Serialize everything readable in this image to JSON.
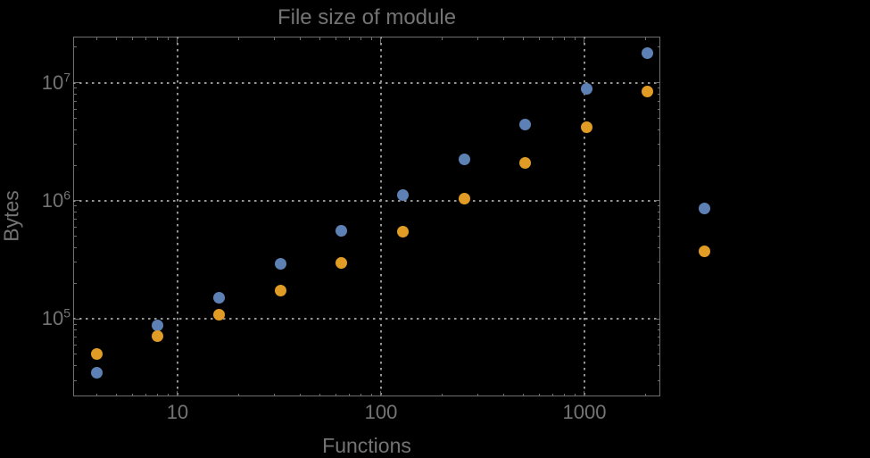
{
  "background_color": "#000000",
  "text_color": "#747474",
  "frame_color": "#6f6f6f",
  "gridline_color": "#949494",
  "chart_data": {
    "type": "scatter",
    "title": "File size of module",
    "xlabel": "Functions",
    "ylabel": "Bytes",
    "x_scale": "log",
    "y_scale": "log",
    "xlim": [
      3.07,
      2360
    ],
    "ylim": [
      22000,
      24600000
    ],
    "grid": {
      "style": "dotted",
      "x_values": [
        10,
        100,
        1000
      ],
      "y_values": [
        100000,
        1000000,
        10000000
      ]
    },
    "x_major_ticks": [
      {
        "value": 10,
        "label": "10"
      },
      {
        "value": 100,
        "label": "100"
      },
      {
        "value": 1000,
        "label": "1000"
      }
    ],
    "y_major_ticks": [
      {
        "value": 100000,
        "base": "10",
        "exponent": "5"
      },
      {
        "value": 1000000,
        "base": "10",
        "exponent": "6"
      },
      {
        "value": 10000000,
        "base": "10",
        "exponent": "7"
      }
    ],
    "x": [
      4,
      8,
      16,
      32,
      64,
      128,
      256,
      512,
      1024,
      2048,
      3900
    ],
    "series": [
      {
        "name": "series-1-blue",
        "color": "#5E81B5",
        "values": [
          35000,
          88000,
          150000,
          292000,
          557000,
          1120000,
          2250000,
          4440000,
          8900000,
          17900000,
          860000
        ]
      },
      {
        "name": "series-2-orange",
        "color": "#E09C24",
        "values": [
          50000,
          71000,
          108000,
          173000,
          297000,
          545000,
          1040000,
          2100000,
          4220000,
          8470000,
          375000
        ]
      }
    ],
    "legend": "none",
    "note": "last data column is drawn outside the right frame edge (no plot-range clipping)"
  }
}
